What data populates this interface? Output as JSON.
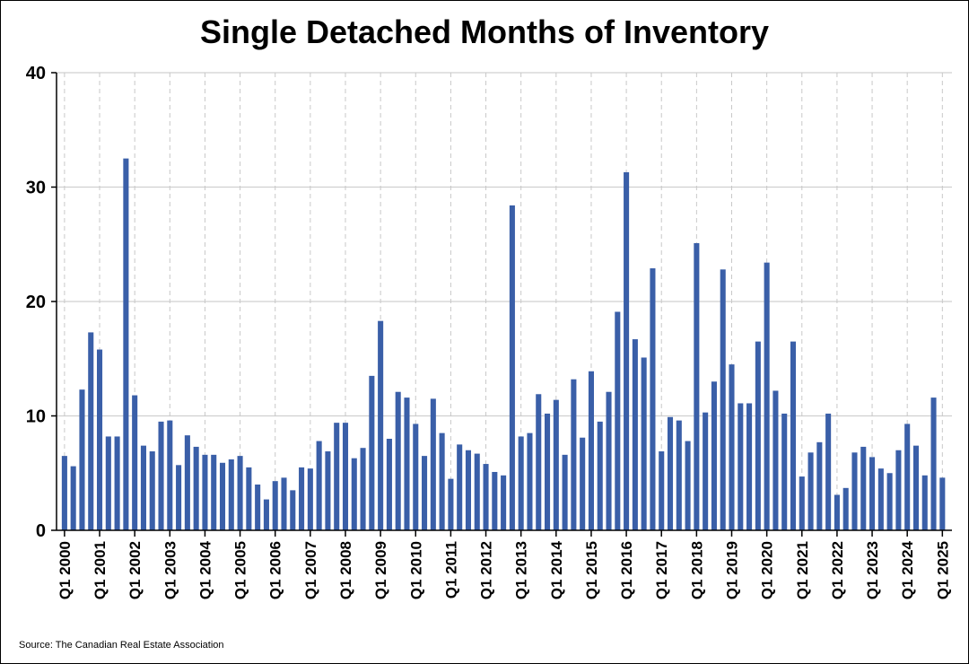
{
  "title": "Single Detached Months of Inventory",
  "source": "Source: The Canadian Real Estate Association",
  "chart_data": {
    "type": "bar",
    "title": "Single Detached Months of Inventory",
    "xlabel": "",
    "ylabel": "",
    "ylim": [
      0,
      40
    ],
    "yticks": [
      0,
      10,
      20,
      30,
      40
    ],
    "grid": true,
    "bar_color": "#3a5fa8",
    "xtick_labels": [
      "Q1 2000",
      "Q1 2001",
      "Q1 2002",
      "Q1 2003",
      "Q1 2004",
      "Q1 2005",
      "Q1 2006",
      "Q1 2007",
      "Q1 2008",
      "Q1 2009",
      "Q1 2010",
      "Q1 2011",
      "Q1 2012",
      "Q1 2013",
      "Q1 2014",
      "Q1 2015",
      "Q1 2016",
      "Q1 2017",
      "Q1 2018",
      "Q1 2019",
      "Q1 2020",
      "Q1 2021",
      "Q1 2022",
      "Q1 2023",
      "Q1 2024",
      "Q1 2025"
    ],
    "categories": [
      "Q1 2000",
      "Q2 2000",
      "Q3 2000",
      "Q4 2000",
      "Q1 2001",
      "Q2 2001",
      "Q3 2001",
      "Q4 2001",
      "Q1 2002",
      "Q2 2002",
      "Q3 2002",
      "Q4 2002",
      "Q1 2003",
      "Q2 2003",
      "Q3 2003",
      "Q4 2003",
      "Q1 2004",
      "Q2 2004",
      "Q3 2004",
      "Q4 2004",
      "Q1 2005",
      "Q2 2005",
      "Q3 2005",
      "Q4 2005",
      "Q1 2006",
      "Q2 2006",
      "Q3 2006",
      "Q4 2006",
      "Q1 2007",
      "Q2 2007",
      "Q3 2007",
      "Q4 2007",
      "Q1 2008",
      "Q2 2008",
      "Q3 2008",
      "Q4 2008",
      "Q1 2009",
      "Q2 2009",
      "Q3 2009",
      "Q4 2009",
      "Q1 2010",
      "Q2 2010",
      "Q3 2010",
      "Q4 2010",
      "Q1 2011",
      "Q2 2011",
      "Q3 2011",
      "Q4 2011",
      "Q1 2012",
      "Q2 2012",
      "Q3 2012",
      "Q4 2012",
      "Q1 2013",
      "Q2 2013",
      "Q3 2013",
      "Q4 2013",
      "Q1 2014",
      "Q2 2014",
      "Q3 2014",
      "Q4 2014",
      "Q1 2015",
      "Q2 2015",
      "Q3 2015",
      "Q4 2015",
      "Q1 2016",
      "Q2 2016",
      "Q3 2016",
      "Q4 2016",
      "Q1 2017",
      "Q2 2017",
      "Q3 2017",
      "Q4 2017",
      "Q1 2018",
      "Q2 2018",
      "Q3 2018",
      "Q4 2018",
      "Q1 2019",
      "Q2 2019",
      "Q3 2019",
      "Q4 2019",
      "Q1 2020",
      "Q2 2020",
      "Q3 2020",
      "Q4 2020",
      "Q1 2021",
      "Q2 2021",
      "Q3 2021",
      "Q4 2021",
      "Q1 2022",
      "Q2 2022",
      "Q3 2022",
      "Q4 2022",
      "Q1 2023",
      "Q2 2023",
      "Q3 2023",
      "Q4 2023",
      "Q1 2024",
      "Q2 2024",
      "Q3 2024",
      "Q4 2024",
      "Q1 2025"
    ],
    "values": [
      6.5,
      5.6,
      12.3,
      17.3,
      15.8,
      8.2,
      8.2,
      32.5,
      11.8,
      7.4,
      6.9,
      9.5,
      9.6,
      5.7,
      8.3,
      7.3,
      6.6,
      6.6,
      5.9,
      6.2,
      6.5,
      5.5,
      4.0,
      2.7,
      4.3,
      4.6,
      3.5,
      5.5,
      5.4,
      7.8,
      6.9,
      9.4,
      9.4,
      6.3,
      7.2,
      13.5,
      18.3,
      8.0,
      12.1,
      11.6,
      9.3,
      6.5,
      11.5,
      8.5,
      4.5,
      7.5,
      7.0,
      6.7,
      5.8,
      5.1,
      4.8,
      28.4,
      8.2,
      8.5,
      11.9,
      10.2,
      11.4,
      6.6,
      13.2,
      8.1,
      13.9,
      9.5,
      12.1,
      19.1,
      31.3,
      16.7,
      15.1,
      22.9,
      6.9,
      9.9,
      9.6,
      7.8,
      25.1,
      10.3,
      13.0,
      22.8,
      14.5,
      11.1,
      11.1,
      16.5,
      23.4,
      12.2,
      10.2,
      16.5,
      4.7,
      6.8,
      7.7,
      10.2,
      3.1,
      3.7,
      6.8,
      7.3,
      6.4,
      5.4,
      5.0,
      7.0,
      9.3,
      7.4,
      4.8,
      11.6,
      4.6
    ]
  }
}
